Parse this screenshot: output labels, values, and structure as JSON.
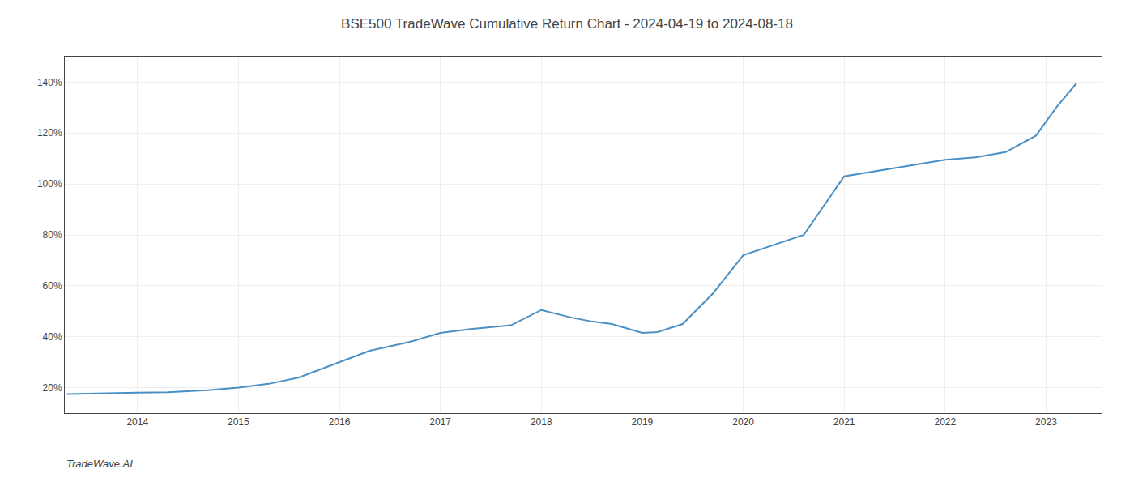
{
  "chart_data": {
    "type": "line",
    "title": "BSE500 TradeWave Cumulative Return Chart - 2024-04-19 to 2024-08-18",
    "annotations": [
      "TradeWave.AI"
    ],
    "x": [
      2013.3,
      2013.6,
      2014.0,
      2014.3,
      2014.7,
      2015.0,
      2015.3,
      2015.6,
      2016.0,
      2016.3,
      2016.7,
      2017.0,
      2017.3,
      2017.7,
      2018.0,
      2018.3,
      2018.5,
      2018.7,
      2019.0,
      2019.15,
      2019.4,
      2019.7,
      2020.0,
      2020.3,
      2020.6,
      2021.0,
      2021.3,
      2021.6,
      2022.0,
      2022.3,
      2022.6,
      2022.9,
      2023.1,
      2023.3
    ],
    "values": [
      17.5,
      17.8,
      18.0,
      18.2,
      19.0,
      20.0,
      21.5,
      24.0,
      30.0,
      34.5,
      38.0,
      41.5,
      43.0,
      44.5,
      50.5,
      47.5,
      46.0,
      45.0,
      41.5,
      41.8,
      45.0,
      57.0,
      72.0,
      76.0,
      80.0,
      103.0,
      105.0,
      107.0,
      109.5,
      110.5,
      112.5,
      119.0,
      130.0,
      139.5
    ],
    "color": "#4a90c4",
    "xlim": [
      2013.28,
      2023.55
    ],
    "ylim": [
      10,
      150
    ],
    "xticks": [
      2014,
      2015,
      2016,
      2017,
      2018,
      2019,
      2020,
      2021,
      2022,
      2023
    ],
    "yticks": [
      {
        "value": 20,
        "label": "20%"
      },
      {
        "value": 40,
        "label": "40%"
      },
      {
        "value": 60,
        "label": "60%"
      },
      {
        "value": 80,
        "label": "80%"
      },
      {
        "value": 100,
        "label": "100%"
      },
      {
        "value": 120,
        "label": "120%"
      },
      {
        "value": 140,
        "label": "140%"
      }
    ],
    "grid": true
  }
}
